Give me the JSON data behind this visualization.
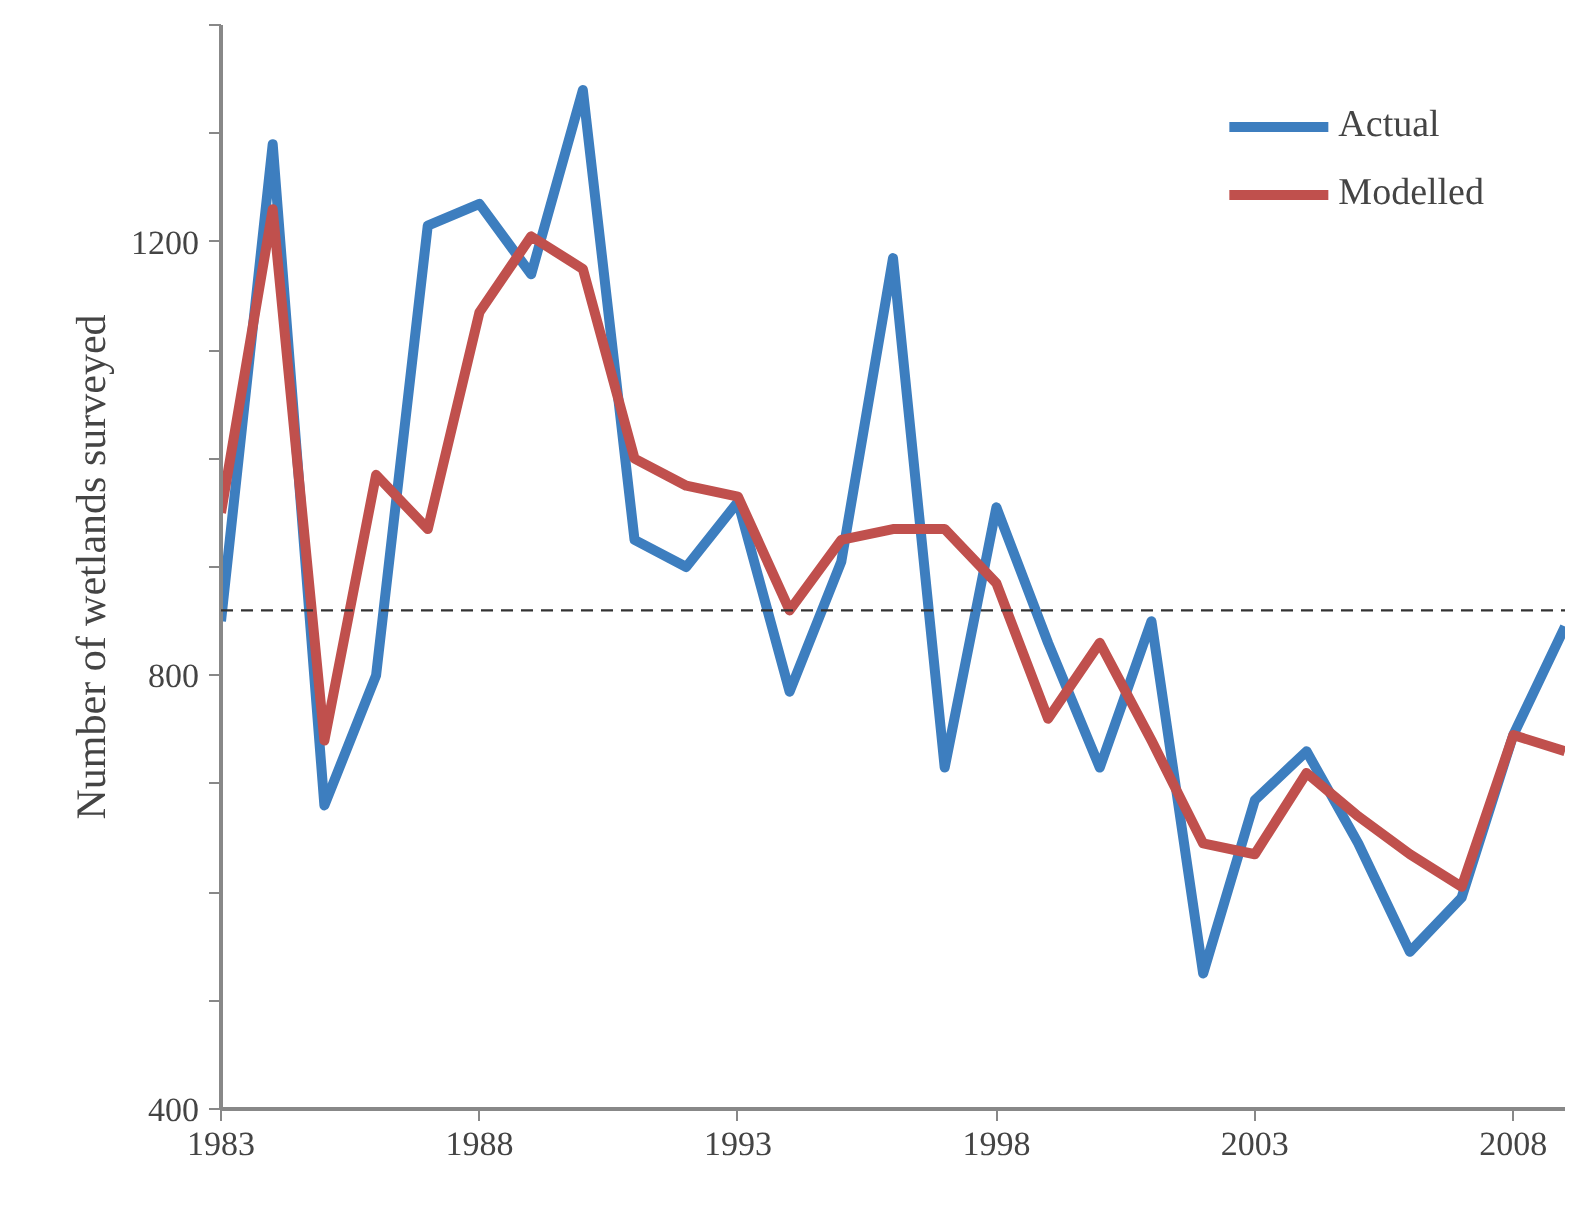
{
  "chart_data": {
    "type": "line",
    "ylabel": "Number of wetlands surveyed",
    "x": [
      1983,
      1984,
      1985,
      1986,
      1987,
      1988,
      1989,
      1990,
      1991,
      1992,
      1993,
      1994,
      1995,
      1996,
      1997,
      1998,
      1999,
      2000,
      2001,
      2002,
      2003,
      2004,
      2005,
      2006,
      2007,
      2008,
      2009
    ],
    "series": [
      {
        "name": "Actual",
        "color": "#3d7ebf",
        "values": [
          850,
          1290,
          680,
          800,
          1215,
          1235,
          1170,
          1340,
          925,
          900,
          960,
          785,
          905,
          1185,
          715,
          955,
          830,
          715,
          850,
          525,
          685,
          730,
          645,
          545,
          595,
          745,
          845
        ]
      },
      {
        "name": "Modelled",
        "color": "#c0504d",
        "values": [
          950,
          1230,
          740,
          985,
          935,
          1135,
          1205,
          1175,
          1000,
          975,
          965,
          860,
          925,
          935,
          935,
          885,
          760,
          830,
          740,
          645,
          635,
          710,
          670,
          635,
          605,
          745,
          730
        ]
      }
    ],
    "xlim": [
      1983,
      2009
    ],
    "xticks": [
      1983,
      1988,
      1993,
      1998,
      2003,
      2008
    ],
    "ylim": [
      400,
      1400
    ],
    "yticks": [
      400,
      {
        "value": 500,
        "label": null
      },
      {
        "value": 600,
        "label": null
      },
      {
        "value": 700,
        "label": null
      },
      800,
      {
        "value": 900,
        "label": null
      },
      {
        "value": 1000,
        "label": null
      },
      {
        "value": 1100,
        "label": null
      },
      1200,
      {
        "value": 1300,
        "label": null
      },
      {
        "value": 1400,
        "label": null
      }
    ],
    "ref_lines": [
      {
        "axis": "y",
        "value": 860,
        "label": null,
        "color": "#333333",
        "line_style": "dashed"
      }
    ],
    "grid": false,
    "legend": "top right",
    "marker": "none",
    "line_style": "solid"
  }
}
